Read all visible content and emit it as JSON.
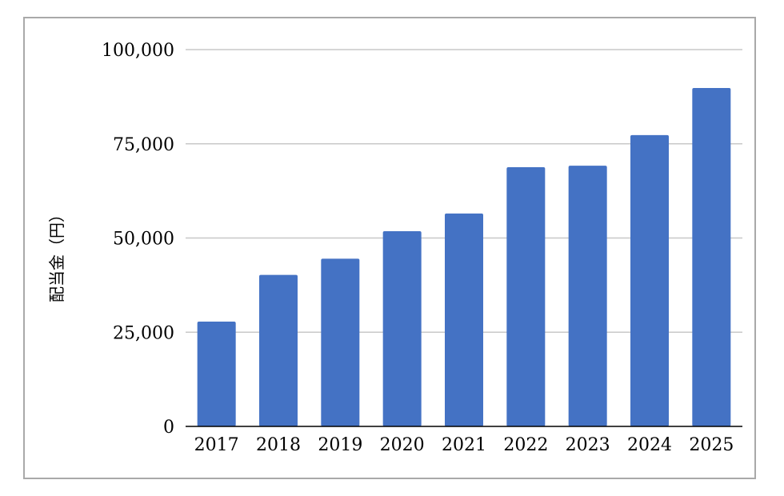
{
  "chart_data": {
    "type": "bar",
    "categories": [
      "2017",
      "2018",
      "2019",
      "2020",
      "2021",
      "2022",
      "2023",
      "2024",
      "2025"
    ],
    "series": [
      {
        "values": [
          27800,
          40200,
          44500,
          51800,
          56500,
          68800,
          69200,
          77300,
          89800
        ],
        "color": "#4472c4"
      }
    ],
    "title": "",
    "xlabel": "",
    "ylabel": "配当金（円）",
    "ylim": [
      0,
      100000
    ],
    "yticks": [
      0,
      25000,
      50000,
      75000,
      100000
    ],
    "ytick_labels": [
      "0",
      "25,000",
      "50,000",
      "75,000",
      "100,000"
    ],
    "grid": true,
    "legend": "none",
    "gridline_color": "#c8c8c8",
    "axis_color": "#000000"
  }
}
